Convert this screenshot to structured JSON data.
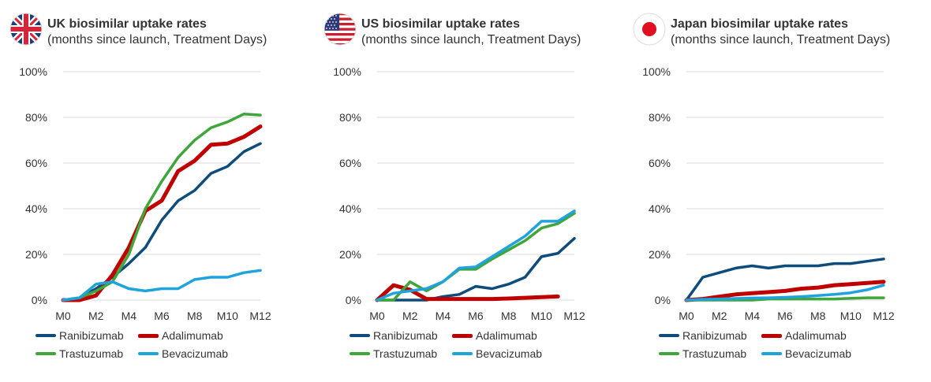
{
  "chart_data": [
    {
      "type": "line",
      "title": "UK biosimilar uptake rates",
      "subtitle": "(months since launch, Treatment Days)",
      "flag": "uk-flag",
      "x": [
        "M0",
        "M1",
        "M2",
        "M3",
        "M4",
        "M5",
        "M6",
        "M7",
        "M8",
        "M9",
        "M10",
        "M11",
        "M12"
      ],
      "x_tick_labels": [
        "M0",
        "M2",
        "M4",
        "M6",
        "M8",
        "M10",
        "M12"
      ],
      "y_tick_labels": [
        "0%",
        "20%",
        "40%",
        "60%",
        "80%",
        "100%"
      ],
      "ylim": [
        0,
        100
      ],
      "y_unit": "%",
      "grid": true,
      "legend_position": "bottom",
      "series": [
        {
          "name": "Ranibizumab",
          "color": "#0e4c7b",
          "values": [
            0,
            1,
            5,
            10,
            16,
            23,
            35,
            43.5,
            48,
            55.5,
            58.5,
            65,
            68.5
          ]
        },
        {
          "name": "Adalimumab",
          "color": "#c00000",
          "values": [
            0,
            0,
            2,
            11,
            23,
            39,
            43.5,
            56.5,
            61,
            68,
            68.5,
            71.5,
            76
          ]
        },
        {
          "name": "Trastuzumab",
          "color": "#3ea63a",
          "values": [
            0,
            1,
            4,
            8,
            20,
            40,
            52,
            62.5,
            70,
            75.5,
            78,
            81.5,
            81
          ]
        },
        {
          "name": "Bevacizumab",
          "color": "#1fa3dd",
          "values": [
            0,
            1,
            7,
            8,
            5,
            4,
            5,
            5,
            9,
            10,
            10,
            12,
            13
          ]
        }
      ]
    },
    {
      "type": "line",
      "title": "US biosimilar uptake rates",
      "subtitle": "(months since launch, Treatment Days)",
      "flag": "us-flag",
      "x": [
        "M0",
        "M1",
        "M2",
        "M3",
        "M4",
        "M5",
        "M6",
        "M7",
        "M8",
        "M9",
        "M10",
        "M11",
        "M12"
      ],
      "x_tick_labels": [
        "M0",
        "M2",
        "M4",
        "M6",
        "M8",
        "M10",
        "M12"
      ],
      "y_tick_labels": [
        "0%",
        "20%",
        "40%",
        "60%",
        "80%",
        "100%"
      ],
      "ylim": [
        0,
        100
      ],
      "y_unit": "%",
      "grid": true,
      "legend_position": "bottom",
      "series": [
        {
          "name": "Ranibizumab",
          "color": "#0e4c7b",
          "values": [
            0,
            0,
            0,
            0,
            1.5,
            2.5,
            6,
            5,
            7,
            10,
            19,
            20.5,
            27
          ]
        },
        {
          "name": "Adalimumab",
          "color": "#c00000",
          "values": [
            0,
            6.5,
            4.5,
            0.5,
            0.5,
            0.5,
            0.5,
            0.5,
            0.7,
            1,
            1.3,
            1.6,
            null
          ]
        },
        {
          "name": "Trastuzumab",
          "color": "#3ea63a",
          "values": [
            0,
            0,
            8,
            4,
            8,
            13.5,
            13.5,
            18,
            22,
            26,
            31.5,
            33.5,
            38
          ]
        },
        {
          "name": "Bevacizumab",
          "color": "#1fa3dd",
          "values": [
            0,
            3,
            4,
            5,
            8,
            14,
            14.5,
            19,
            23.5,
            28,
            34.5,
            34.5,
            39
          ]
        }
      ]
    },
    {
      "type": "line",
      "title": "Japan biosimilar uptake rates",
      "subtitle": "(months since launch, Treatment Days)",
      "flag": "japan-flag",
      "x": [
        "M0",
        "M1",
        "M2",
        "M3",
        "M4",
        "M5",
        "M6",
        "M7",
        "M8",
        "M9",
        "M10",
        "M11",
        "M12"
      ],
      "x_tick_labels": [
        "M0",
        "M2",
        "M4",
        "M6",
        "M8",
        "M10",
        "M12"
      ],
      "y_tick_labels": [
        "0%",
        "20%",
        "40%",
        "60%",
        "80%",
        "100%"
      ],
      "ylim": [
        0,
        100
      ],
      "y_unit": "%",
      "grid": true,
      "legend_position": "bottom",
      "series": [
        {
          "name": "Ranibizumab",
          "color": "#0e4c7b",
          "values": [
            0,
            10,
            12,
            14,
            15,
            14,
            15,
            15,
            15,
            16,
            16,
            17,
            18
          ]
        },
        {
          "name": "Adalimumab",
          "color": "#c00000",
          "values": [
            0,
            0.5,
            1.5,
            2.5,
            3,
            3.5,
            4,
            5,
            5.5,
            6.5,
            7,
            7.5,
            8
          ]
        },
        {
          "name": "Trastuzumab",
          "color": "#3ea63a",
          "values": [
            0,
            0,
            0,
            0,
            0,
            0.5,
            0.5,
            0.5,
            0.5,
            0.5,
            0.8,
            1,
            1
          ]
        },
        {
          "name": "Bevacizumab",
          "color": "#1fa3dd",
          "values": [
            0,
            0.3,
            0.5,
            0.7,
            0.9,
            1,
            1.2,
            1.5,
            2,
            2.5,
            3.2,
            4.5,
            6.5
          ]
        }
      ]
    }
  ]
}
